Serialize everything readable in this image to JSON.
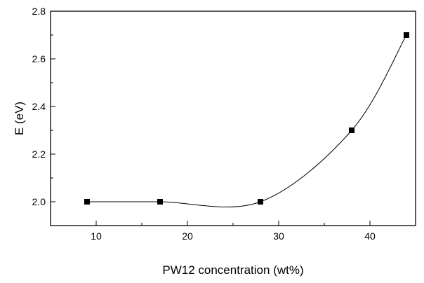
{
  "chart_data": {
    "type": "scatter",
    "xlabel": "PW12 concentration (wt%)",
    "ylabel": "E (eV)",
    "xlim": [
      5,
      45
    ],
    "ylim": [
      1.9,
      2.8
    ],
    "x_ticks": [
      10,
      20,
      30,
      40
    ],
    "y_ticks": [
      2.0,
      2.2,
      2.4,
      2.6,
      2.8
    ],
    "x_tick_labels": [
      "10",
      "20",
      "30",
      "40"
    ],
    "y_tick_labels": [
      "2.0",
      "2.2",
      "2.4",
      "2.6",
      "2.8"
    ],
    "grid": false,
    "marker": "square",
    "line": "smooth-spline",
    "series": [
      {
        "x": [
          9,
          17,
          28,
          38,
          44
        ],
        "y": [
          2.0,
          2.0,
          2.0,
          2.3,
          2.7
        ]
      }
    ],
    "colors": {
      "marker": "#000000",
      "line": "#000000",
      "axes": "#000000"
    }
  }
}
